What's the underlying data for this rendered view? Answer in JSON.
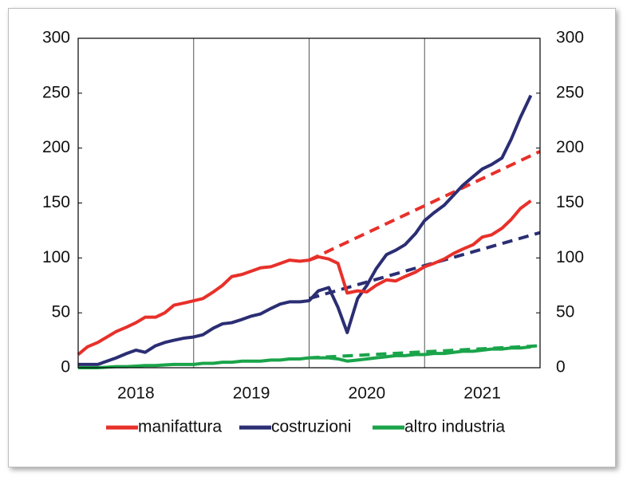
{
  "chart_data": {
    "type": "line",
    "xlim": [
      2018,
      2022
    ],
    "xticks": [
      {
        "value": 2018.5,
        "label": "2018"
      },
      {
        "value": 2019.5,
        "label": "2019"
      },
      {
        "value": 2020.5,
        "label": "2020"
      },
      {
        "value": 2021.5,
        "label": "2021"
      }
    ],
    "xgrid": [
      2019,
      2020,
      2021
    ],
    "ylim": [
      0,
      300
    ],
    "yticks": [
      0,
      50,
      100,
      150,
      200,
      250,
      300
    ],
    "y2lim": [
      0,
      300
    ],
    "y2ticks": [
      0,
      50,
      100,
      150,
      200,
      250,
      300
    ],
    "x": [
      2018.0,
      2018.08,
      2018.17,
      2018.25,
      2018.33,
      2018.42,
      2018.5,
      2018.58,
      2018.67,
      2018.75,
      2018.83,
      2018.92,
      2019.0,
      2019.08,
      2019.17,
      2019.25,
      2019.33,
      2019.42,
      2019.5,
      2019.58,
      2019.67,
      2019.75,
      2019.83,
      2019.92,
      2020.0,
      2020.08,
      2020.17,
      2020.25,
      2020.33,
      2020.42,
      2020.5,
      2020.58,
      2020.67,
      2020.75,
      2020.83,
      2020.92,
      2021.0,
      2021.08,
      2021.17,
      2021.25,
      2021.33,
      2021.42,
      2021.5,
      2021.58,
      2021.67,
      2021.75,
      2021.83,
      2021.92
    ],
    "series": [
      {
        "name": "manifattura",
        "color": "#e8302a",
        "values": [
          12,
          19,
          23,
          28,
          33,
          37,
          41,
          46,
          46,
          50,
          57,
          59,
          61,
          63,
          69,
          75,
          83,
          85,
          88,
          91,
          92,
          95,
          98,
          97,
          98,
          101,
          99,
          95,
          68,
          70,
          69,
          75,
          80,
          79,
          83,
          87,
          92,
          95,
          99,
          104,
          108,
          112,
          119,
          121,
          127,
          135,
          145,
          152
        ]
      },
      {
        "name": "costruzioni",
        "color": "#2b2e73",
        "values": [
          3,
          3,
          3,
          6,
          9,
          13,
          16,
          14,
          20,
          23,
          25,
          27,
          28,
          30,
          36,
          40,
          41,
          44,
          47,
          49,
          54,
          58,
          60,
          60,
          61,
          70,
          73,
          55,
          32,
          63,
          75,
          90,
          103,
          107,
          112,
          122,
          134,
          141,
          148,
          157,
          166,
          174,
          181,
          185,
          191,
          208,
          228,
          248
        ]
      },
      {
        "name": "altro industria",
        "color": "#1aa44a",
        "values": [
          0,
          0,
          0,
          0.5,
          1,
          1,
          1.5,
          2,
          2,
          2.5,
          3,
          3,
          3,
          4,
          4,
          5,
          5,
          6,
          6,
          6,
          7,
          7,
          8,
          8,
          9,
          9,
          9,
          8,
          6,
          7,
          8,
          9,
          10,
          11,
          11,
          12,
          12,
          13,
          13,
          14,
          15,
          15,
          16,
          17,
          17,
          18,
          18,
          19
        ]
      }
    ],
    "trend_series": [
      {
        "color": "#e8302a",
        "dashed": true,
        "x": [
          2020.0,
          2022.0
        ],
        "values": [
          98,
          197
        ]
      },
      {
        "color": "#2b2e73",
        "dashed": true,
        "x": [
          2020.0,
          2022.0
        ],
        "values": [
          63,
          123
        ]
      },
      {
        "color": "#1aa44a",
        "dashed": true,
        "x": [
          2020.0,
          2022.0
        ],
        "values": [
          9,
          20
        ]
      }
    ]
  }
}
